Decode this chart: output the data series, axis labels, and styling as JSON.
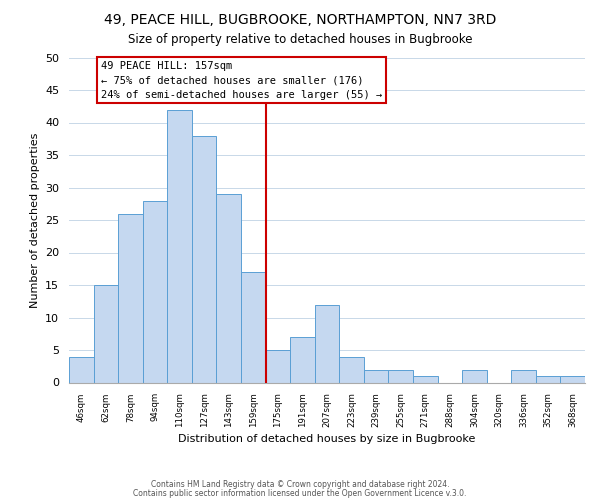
{
  "title": "49, PEACE HILL, BUGBROOKE, NORTHAMPTON, NN7 3RD",
  "subtitle": "Size of property relative to detached houses in Bugbrooke",
  "xlabel": "Distribution of detached houses by size in Bugbrooke",
  "ylabel": "Number of detached properties",
  "bin_labels": [
    "46sqm",
    "62sqm",
    "78sqm",
    "94sqm",
    "110sqm",
    "127sqm",
    "143sqm",
    "159sqm",
    "175sqm",
    "191sqm",
    "207sqm",
    "223sqm",
    "239sqm",
    "255sqm",
    "271sqm",
    "288sqm",
    "304sqm",
    "320sqm",
    "336sqm",
    "352sqm",
    "368sqm"
  ],
  "bar_heights": [
    4,
    15,
    26,
    28,
    42,
    38,
    29,
    17,
    5,
    7,
    12,
    4,
    2,
    2,
    1,
    0,
    2,
    0,
    2,
    1,
    1
  ],
  "bar_color": "#c5d8f0",
  "bar_edge_color": "#5a9fd4",
  "vline_x": 7.5,
  "vline_color": "#cc0000",
  "annotation_text": "49 PEACE HILL: 157sqm\n← 75% of detached houses are smaller (176)\n24% of semi-detached houses are larger (55) →",
  "annotation_box_color": "#ffffff",
  "annotation_box_edge": "#cc0000",
  "ylim": [
    0,
    50
  ],
  "yticks": [
    0,
    5,
    10,
    15,
    20,
    25,
    30,
    35,
    40,
    45,
    50
  ],
  "footer1": "Contains HM Land Registry data © Crown copyright and database right 2024.",
  "footer2": "Contains public sector information licensed under the Open Government Licence v.3.0.",
  "background_color": "#ffffff",
  "grid_color": "#c8d8e8"
}
